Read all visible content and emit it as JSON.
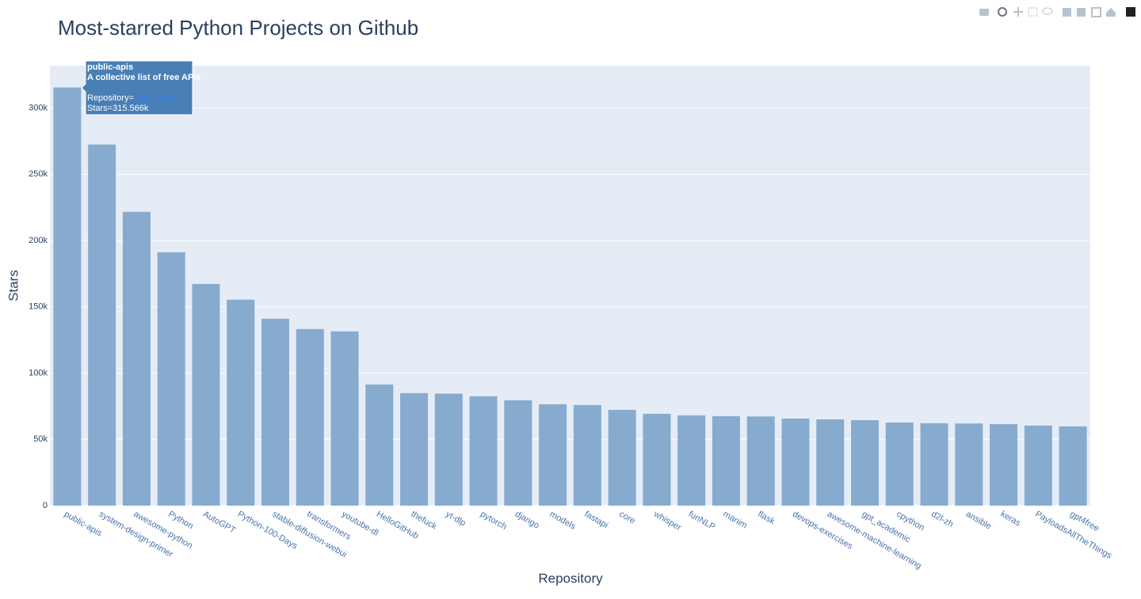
{
  "chart_data": {
    "type": "bar",
    "title": "Most-starred Python Projects on Github",
    "x_label": "Repository",
    "y_label": "Stars",
    "categories": [
      "public-apis",
      "system-design-primer",
      "awesome-python",
      "Python",
      "AutoGPT",
      "Python-100-Days",
      "stable-diffusion-webui",
      "transformers",
      "youtube-dl",
      "HelloGitHub",
      "thefuck",
      "yt-dlp",
      "pytorch",
      "django",
      "models",
      "fastapi",
      "core",
      "whisper",
      "funNLP",
      "manim",
      "flask",
      "devops-exercises",
      "awesome-machine-learning",
      "gpt_academic",
      "cpython",
      "d2l-zh",
      "ansible",
      "keras",
      "PayloadsAllTheThings",
      "gpt4free"
    ],
    "values": [
      315566,
      272500,
      221700,
      191200,
      167300,
      155400,
      141000,
      133300,
      131500,
      91400,
      84900,
      84500,
      82500,
      79500,
      76500,
      75900,
      72300,
      69300,
      68100,
      67500,
      67300,
      65700,
      65100,
      64500,
      62700,
      62200,
      62000,
      61500,
      60400,
      59800
    ],
    "color": "#87abcf",
    "ylim": [
      0,
      332000
    ],
    "yticks": [
      0,
      {
        "value": 50000,
        "label": "50k"
      },
      {
        "value": 100000,
        "label": "100k"
      },
      {
        "value": 150000,
        "label": "150k"
      },
      {
        "value": 200000,
        "label": "200k"
      },
      {
        "value": 250000,
        "label": "250k"
      },
      {
        "value": 300000,
        "label": "300k"
      }
    ],
    "grid": true,
    "tooltip": {
      "title": "public-apis",
      "description": "A collective list of free APIs",
      "repository": "Repository=",
      "repository_link": "public-apis",
      "stars": "Stars=315.566k"
    }
  }
}
